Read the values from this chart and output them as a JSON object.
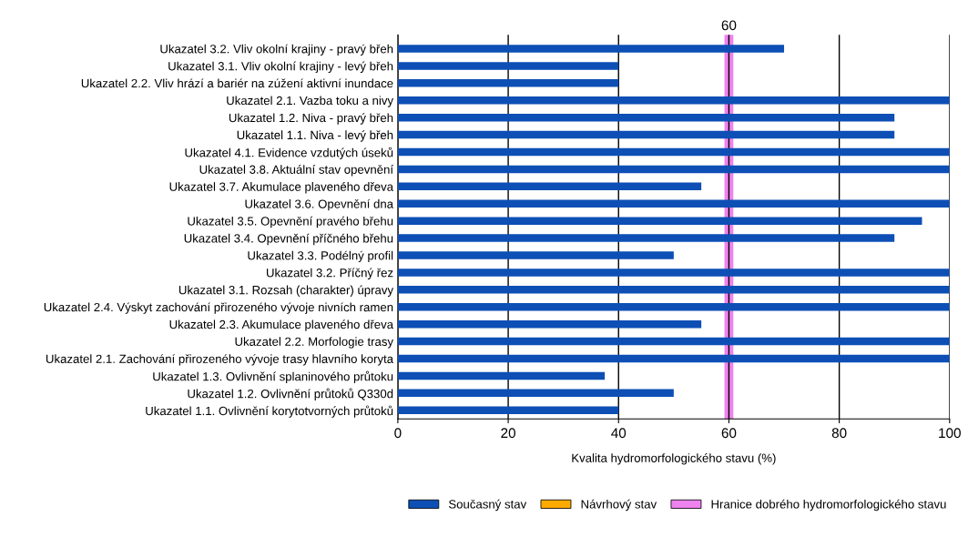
{
  "chart_data": {
    "type": "bar",
    "orientation": "horizontal",
    "categories": [
      "Ukazatel 3.2. Vliv okolní krajiny - pravý břeh",
      "Ukazatel 3.1. Vliv okolní krajiny - levý břeh",
      "Ukazatel 2.2. Vliv hrází a bariér na zúžení aktivní inundace",
      "Ukazatel 2.1. Vazba toku a nivy",
      "Ukazatel 1.2. Niva - pravý břeh",
      "Ukazatel 1.1. Niva - levý břeh",
      "Ukazatel 4.1. Evidence vzdutých úseků",
      "Ukazatel 3.8. Aktuální stav opevnění",
      "Ukazatel 3.7. Akumulace plaveného dřeva",
      "Ukazatel 3.6. Opevnění dna",
      "Ukazatel 3.5. Opevnění pravého břehu",
      "Ukazatel 3.4. Opevnění příčného břehu",
      "Ukazatel 3.3. Podélný profil",
      "Ukazatel 3.2. Příčný řez",
      "Ukazatel 3.1. Rozsah (charakter) úpravy",
      "Ukazatel 2.4. Výskyt zachování přirozeného vývoje nivních ramen",
      "Ukazatel 2.3. Akumulace plaveného dřeva",
      "Ukazatel 2.2. Morfologie trasy",
      "Ukazatel 2.1. Zachování přirozeného vývoje trasy hlavního koryta",
      "Ukazatel 1.3. Ovlivnění splaninového průtoku",
      "Ukazatel 1.2. Ovlivnění průtoků Q330d",
      "Ukazatel 1.1. Ovlivnění korytotvorných průtoků"
    ],
    "series": [
      {
        "name": "Současný stav",
        "color": "#0d4fb5",
        "values": [
          70,
          40,
          40,
          100,
          90,
          90,
          100,
          100,
          55,
          100,
          95,
          90,
          50,
          100,
          100,
          100,
          55,
          100,
          100,
          37.5,
          50,
          40
        ]
      },
      {
        "name": "Návrhový stav",
        "color": "#ffaa00",
        "values": [
          null,
          null,
          null,
          null,
          null,
          null,
          null,
          null,
          null,
          null,
          null,
          null,
          null,
          null,
          null,
          null,
          null,
          null,
          null,
          null,
          null,
          null
        ]
      }
    ],
    "xlabel": "Kvalita hydromorfologického stavu (%)",
    "xlim": [
      0,
      100
    ],
    "xticks": [
      0,
      20,
      40,
      60,
      80,
      100
    ],
    "grid": "x",
    "legend": "bottom",
    "ref_lines": [
      {
        "axis": "x",
        "value": 60,
        "label": "Hranice dobrého hydromorfologického stavu",
        "color": "#ee82ee"
      }
    ],
    "annotations": [
      "60"
    ]
  }
}
